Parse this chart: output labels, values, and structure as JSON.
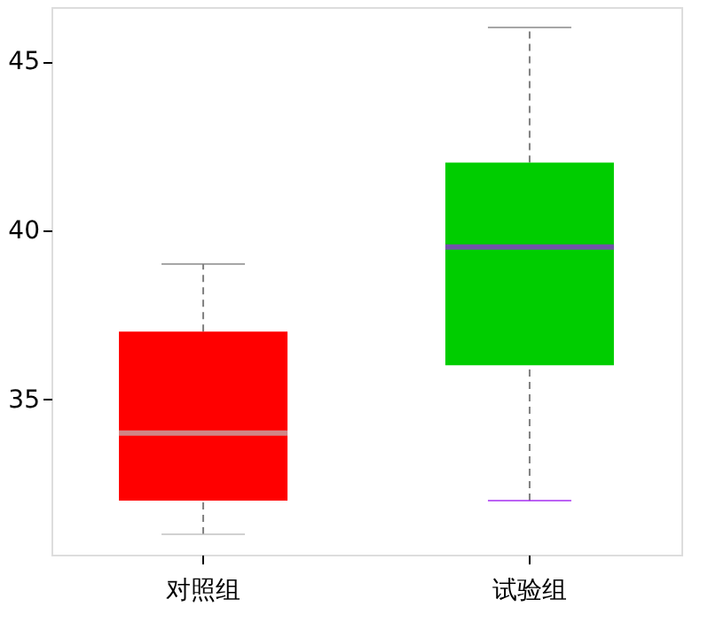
{
  "chart_data": {
    "type": "box",
    "categories": [
      "对照组",
      "试验组"
    ],
    "boxes": [
      {
        "low": 31,
        "q1": 32,
        "median": 34,
        "q3": 37,
        "high": 39
      },
      {
        "low": 32,
        "q1": 36,
        "median": 39.5,
        "q3": 42,
        "high": 46
      }
    ],
    "colors": [
      "#ff0000",
      "#00cd00"
    ],
    "ylim": [
      30.4,
      46.6
    ],
    "yticks": [
      35,
      40,
      45
    ],
    "grid": false
  }
}
